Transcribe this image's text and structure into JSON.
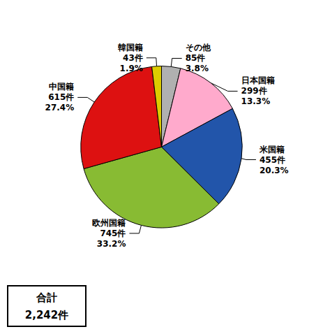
{
  "chart_data": {
    "type": "pie",
    "categories": [
      "その他",
      "日本国籍",
      "米国籍",
      "欧州国籍",
      "中国籍",
      "韓国籍"
    ],
    "values": [
      85,
      299,
      455,
      745,
      615,
      43
    ],
    "value_labels": [
      "85件",
      "299件",
      "455件",
      "745件",
      "615件",
      "43件"
    ],
    "percentages": [
      {
        "value": 3.8,
        "label": "3.8%"
      },
      {
        "value": 13.3,
        "label": "13.3%"
      },
      {
        "value": 20.3,
        "label": "20.3%"
      },
      {
        "value": 33.2,
        "label": "33.2%"
      },
      {
        "value": 27.4,
        "label": "27.4%"
      },
      {
        "value": 1.9,
        "label": "1.9%"
      }
    ],
    "colors": [
      "#b0b0b0",
      "#ffaacc",
      "#2255aa",
      "#88bb33",
      "#dd1111",
      "#ddcc00"
    ],
    "total_title": "合計",
    "total": {
      "value": 2242,
      "label": "2,242件"
    }
  }
}
